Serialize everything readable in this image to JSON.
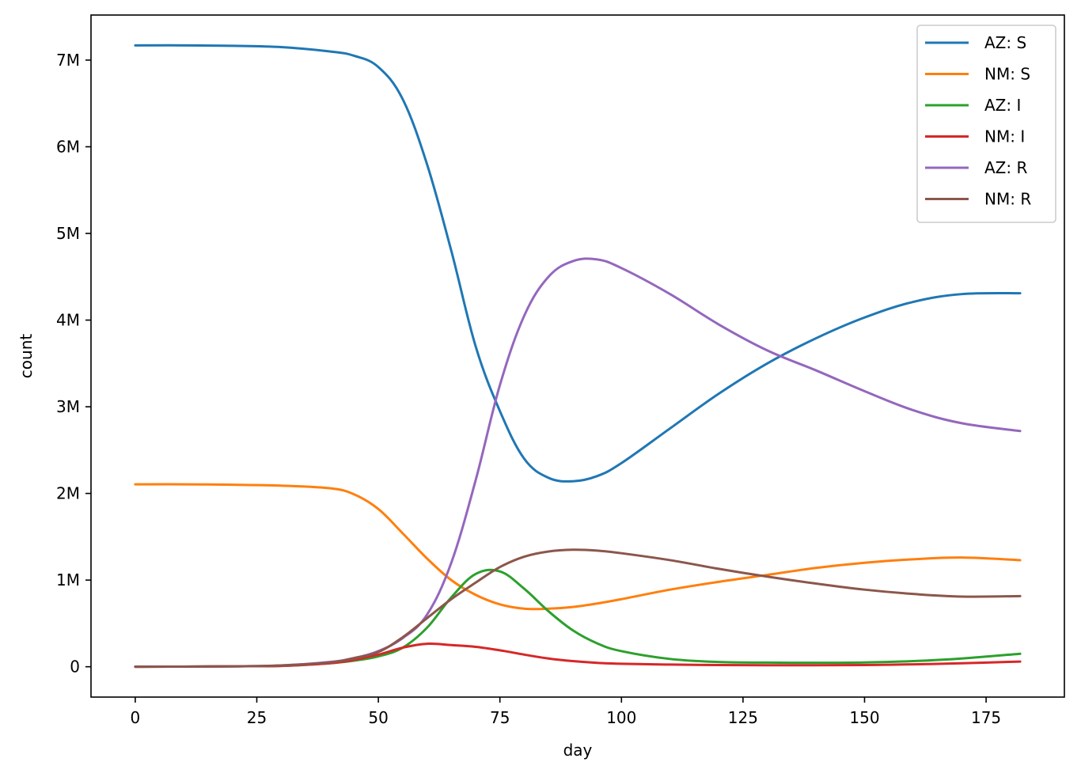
{
  "chart_data": {
    "type": "line",
    "title": "",
    "xlabel": "day",
    "ylabel": "count",
    "xlim": [
      -9.1,
      191.1
    ],
    "ylim": [
      -350000,
      7520000
    ],
    "x_ticks": [
      0,
      25,
      50,
      75,
      100,
      125,
      150,
      175
    ],
    "x_tick_labels": [
      "0",
      "25",
      "50",
      "75",
      "100",
      "125",
      "150",
      "175"
    ],
    "y_ticks": [
      0,
      1000000,
      2000000,
      3000000,
      4000000,
      5000000,
      6000000,
      7000000
    ],
    "y_tick_labels": [
      "0",
      "1M",
      "2M",
      "3M",
      "4M",
      "5M",
      "6M",
      "7M"
    ],
    "grid": false,
    "legend_position": "top-right",
    "x": [
      0,
      10,
      20,
      30,
      40,
      45,
      50,
      55,
      60,
      65,
      70,
      75,
      80,
      85,
      90,
      95,
      100,
      110,
      120,
      130,
      140,
      150,
      160,
      170,
      182
    ],
    "series": [
      {
        "name": "AZ: S",
        "color": "#1f77b4",
        "values": [
          7170000,
          7170000,
          7165000,
          7150000,
          7100000,
          7050000,
          6920000,
          6550000,
          5800000,
          4800000,
          3700000,
          2950000,
          2400000,
          2180000,
          2140000,
          2200000,
          2350000,
          2750000,
          3150000,
          3500000,
          3790000,
          4030000,
          4210000,
          4300000,
          4310000
        ]
      },
      {
        "name": "NM: S",
        "color": "#ff7f0e",
        "values": [
          2105000,
          2105000,
          2100000,
          2090000,
          2060000,
          1990000,
          1820000,
          1540000,
          1250000,
          1000000,
          830000,
          720000,
          670000,
          670000,
          690000,
          730000,
          780000,
          890000,
          980000,
          1060000,
          1140000,
          1200000,
          1240000,
          1260000,
          1230000
        ]
      },
      {
        "name": "AZ: I",
        "color": "#2ca02c",
        "values": [
          0,
          2000,
          5000,
          10000,
          40000,
          70000,
          120000,
          220000,
          450000,
          800000,
          1070000,
          1100000,
          900000,
          640000,
          420000,
          270000,
          180000,
          90000,
          55000,
          48000,
          46000,
          50000,
          65000,
          95000,
          150000
        ]
      },
      {
        "name": "NM: I",
        "color": "#d62728",
        "values": [
          0,
          2000,
          5000,
          10000,
          40000,
          80000,
          140000,
          220000,
          265000,
          250000,
          230000,
          190000,
          140000,
          95000,
          65000,
          45000,
          35000,
          25000,
          20000,
          18000,
          18000,
          20000,
          28000,
          40000,
          60000
        ]
      },
      {
        "name": "AZ: R",
        "color": "#9467bd",
        "values": [
          0,
          2000,
          5000,
          15000,
          55000,
          100000,
          180000,
          330000,
          600000,
          1200000,
          2150000,
          3250000,
          4050000,
          4500000,
          4680000,
          4700000,
          4600000,
          4300000,
          3950000,
          3650000,
          3420000,
          3180000,
          2960000,
          2810000,
          2720000
        ]
      },
      {
        "name": "NM: R",
        "color": "#8c564b",
        "values": [
          0,
          2000,
          5000,
          15000,
          50000,
          100000,
          170000,
          340000,
          560000,
          780000,
          970000,
          1150000,
          1270000,
          1330000,
          1350000,
          1340000,
          1310000,
          1230000,
          1130000,
          1040000,
          960000,
          890000,
          840000,
          810000,
          815000
        ]
      }
    ]
  }
}
